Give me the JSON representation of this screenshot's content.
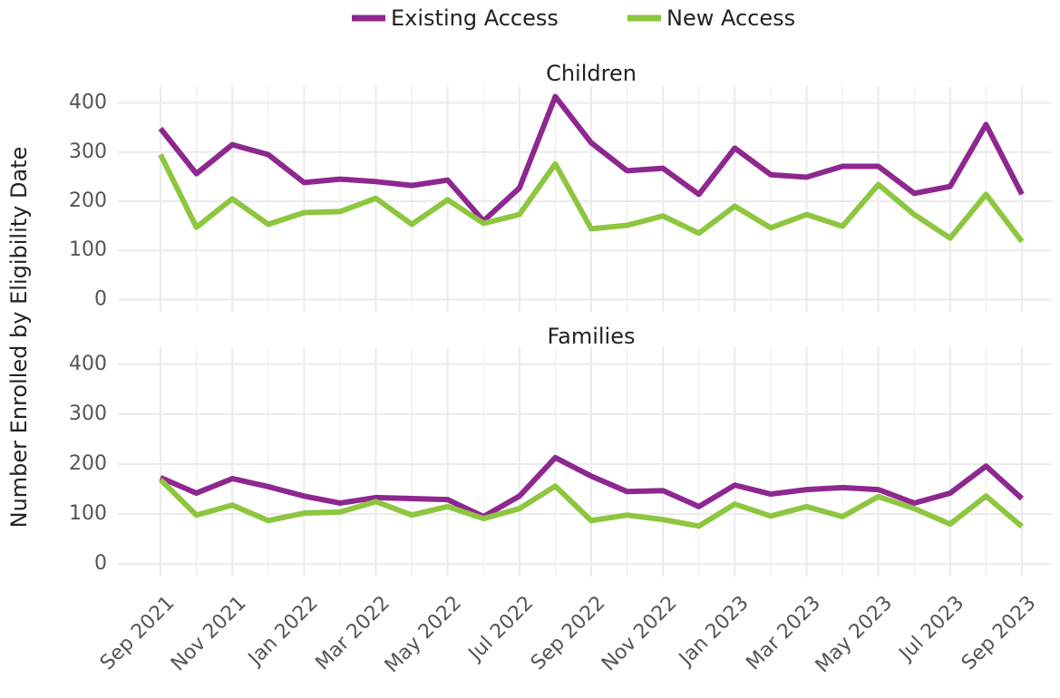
{
  "chart_data": {
    "type": "line",
    "y_label": "Number Enrolled by Eligibility Date",
    "categories": [
      "Sep 2021",
      null,
      "Nov 2021",
      null,
      "Jan 2022",
      null,
      "Mar 2022",
      null,
      "May 2022",
      null,
      "Jul 2022",
      null,
      "Sep 2022",
      null,
      "Nov 2022",
      null,
      "Jan 2023",
      null,
      "Mar 2023",
      null,
      "May 2023",
      null,
      "Jul 2023",
      null,
      "Sep 2023"
    ],
    "ylim": [
      -25,
      425
    ],
    "yticks": [
      0,
      100,
      200,
      300,
      400
    ],
    "grid": true,
    "legend": "top",
    "series": [
      {
        "name": "Existing Access",
        "color": "#8e278f"
      },
      {
        "name": "New Access",
        "color": "#8dc63f"
      }
    ],
    "panels": [
      {
        "title": "Children",
        "values": [
          [
            348,
            256,
            315,
            295,
            238,
            245,
            240,
            232,
            243,
            160,
            227,
            413,
            319,
            262,
            267,
            214,
            308,
            254,
            249,
            271,
            271,
            216,
            230,
            356,
            214
          ],
          [
            295,
            147,
            205,
            153,
            177,
            179,
            206,
            153,
            203,
            155,
            173,
            276,
            144,
            151,
            170,
            135,
            190,
            146,
            173,
            149,
            234,
            173,
            125,
            214,
            118
          ]
        ]
      },
      {
        "title": "Families",
        "values": [
          [
            173,
            142,
            171,
            155,
            136,
            122,
            133,
            131,
            129,
            95,
            136,
            213,
            176,
            145,
            147,
            115,
            158,
            140,
            149,
            153,
            149,
            122,
            142,
            196,
            131
          ],
          [
            169,
            98,
            118,
            87,
            102,
            104,
            125,
            98,
            115,
            91,
            111,
            156,
            87,
            98,
            89,
            76,
            120,
            96,
            115,
            95,
            135,
            111,
            80,
            136,
            75
          ]
        ]
      }
    ]
  }
}
